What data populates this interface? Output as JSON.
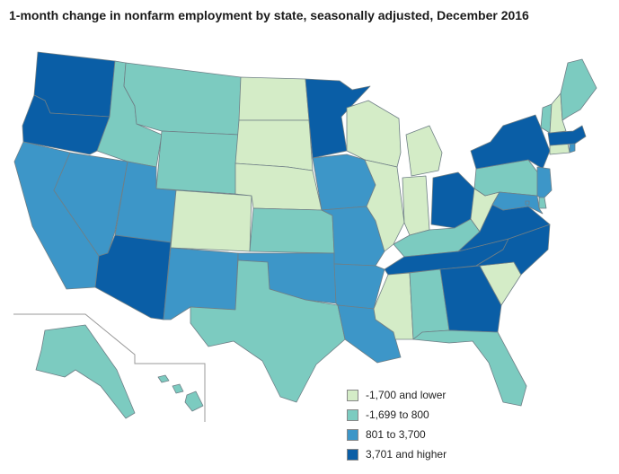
{
  "title": "1-month change in nonfarm employment by state, seasonally adjusted, December 2016",
  "legend": [
    {
      "label": "-1,700 and lower",
      "color": "#d4ecc7"
    },
    {
      "label": "-1,699 to 800",
      "color": "#7ccbc0"
    },
    {
      "label": "801 to 3,700",
      "color": "#3d96c8"
    },
    {
      "label": "3,701 and higher",
      "color": "#0a5ea6"
    }
  ],
  "colors": {
    "border": "#6f7f86",
    "inset_line": "#999999"
  },
  "states": [
    {
      "abbr": "WA",
      "category": 3
    },
    {
      "abbr": "OR",
      "category": 3
    },
    {
      "abbr": "CA",
      "category": 2
    },
    {
      "abbr": "NV",
      "category": 2
    },
    {
      "abbr": "ID",
      "category": 1
    },
    {
      "abbr": "MT",
      "category": 1
    },
    {
      "abbr": "WY",
      "category": 1
    },
    {
      "abbr": "UT",
      "category": 2
    },
    {
      "abbr": "AZ",
      "category": 3
    },
    {
      "abbr": "CO",
      "category": 0
    },
    {
      "abbr": "NM",
      "category": 2
    },
    {
      "abbr": "ND",
      "category": 0
    },
    {
      "abbr": "SD",
      "category": 0
    },
    {
      "abbr": "NE",
      "category": 0
    },
    {
      "abbr": "KS",
      "category": 1
    },
    {
      "abbr": "OK",
      "category": 2
    },
    {
      "abbr": "TX",
      "category": 1
    },
    {
      "abbr": "MN",
      "category": 3
    },
    {
      "abbr": "IA",
      "category": 2
    },
    {
      "abbr": "MO",
      "category": 2
    },
    {
      "abbr": "AR",
      "category": 2
    },
    {
      "abbr": "LA",
      "category": 2
    },
    {
      "abbr": "WI",
      "category": 0
    },
    {
      "abbr": "IL",
      "category": 0
    },
    {
      "abbr": "MI",
      "category": 0
    },
    {
      "abbr": "IN",
      "category": 0
    },
    {
      "abbr": "OH",
      "category": 3
    },
    {
      "abbr": "KY",
      "category": 1
    },
    {
      "abbr": "TN",
      "category": 3
    },
    {
      "abbr": "MS",
      "category": 0
    },
    {
      "abbr": "AL",
      "category": 1
    },
    {
      "abbr": "GA",
      "category": 3
    },
    {
      "abbr": "FL",
      "category": 1
    },
    {
      "abbr": "SC",
      "category": 0
    },
    {
      "abbr": "NC",
      "category": 3
    },
    {
      "abbr": "VA",
      "category": 3
    },
    {
      "abbr": "WV",
      "category": 0
    },
    {
      "abbr": "PA",
      "category": 1
    },
    {
      "abbr": "NY",
      "category": 3
    },
    {
      "abbr": "NJ",
      "category": 2
    },
    {
      "abbr": "DE",
      "category": 1
    },
    {
      "abbr": "MD",
      "category": 2
    },
    {
      "abbr": "DC",
      "category": 2
    },
    {
      "abbr": "CT",
      "category": 0
    },
    {
      "abbr": "RI",
      "category": 2
    },
    {
      "abbr": "MA",
      "category": 3
    },
    {
      "abbr": "VT",
      "category": 1
    },
    {
      "abbr": "NH",
      "category": 0
    },
    {
      "abbr": "ME",
      "category": 1
    },
    {
      "abbr": "AK",
      "category": 1
    },
    {
      "abbr": "HI",
      "category": 1
    }
  ]
}
